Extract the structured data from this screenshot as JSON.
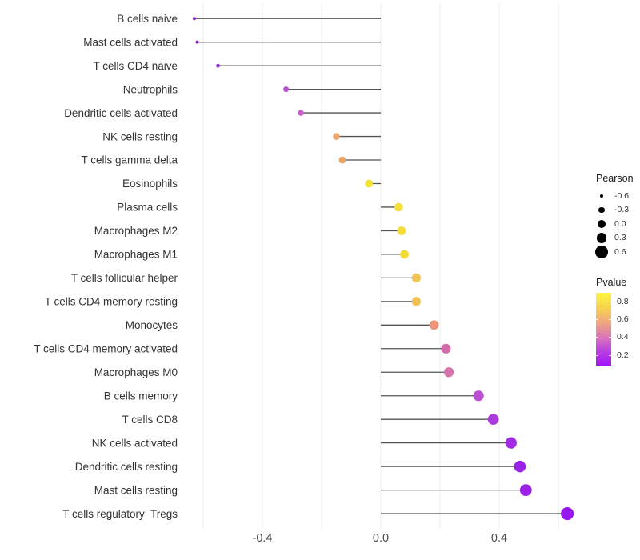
{
  "chart_data": {
    "type": "lollipop",
    "title": "",
    "xlabel": "",
    "ylabel": "",
    "xlim": [
      -0.72,
      0.72
    ],
    "grid": true,
    "gridline_values": [
      -0.6,
      -0.4,
      -0.2,
      0.0,
      0.2,
      0.4,
      0.6
    ],
    "x_ticks": [
      {
        "value": -0.4,
        "label": "-0.4"
      },
      {
        "value": 0.0,
        "label": "0.0"
      },
      {
        "value": 0.4,
        "label": "0.4"
      }
    ],
    "categories": [
      "B cells naive",
      "Mast cells activated",
      "T cells CD4 naive",
      "Neutrophils",
      "Dendritic cells activated",
      "NK cells resting",
      "T cells gamma delta",
      "Eosinophils",
      "Plasma cells",
      "Macrophages M2",
      "Macrophages M1",
      "T cells follicular helper",
      "T cells CD4 memory resting",
      "Monocytes",
      "T cells CD4 memory activated",
      "Macrophages M0",
      "B cells memory",
      "T cells CD8",
      "NK cells activated",
      "Dendritic cells resting",
      "Mast cells resting",
      "T cells regulatory  Tregs"
    ],
    "series": [
      {
        "name": "Pearson",
        "values": [
          -0.63,
          -0.62,
          -0.55,
          -0.32,
          -0.27,
          -0.15,
          -0.13,
          -0.04,
          0.06,
          0.07,
          0.08,
          0.12,
          0.12,
          0.18,
          0.22,
          0.23,
          0.33,
          0.38,
          0.44,
          0.47,
          0.49,
          0.63
        ]
      }
    ],
    "point_colors": [
      "#8A22D0",
      "#8A22D0",
      "#8B2BD6",
      "#B453CE",
      "#C75DC8",
      "#EBA96E",
      "#E9A366",
      "#F4E32C",
      "#F6DE3C",
      "#F5DC3A",
      "#F4DA38",
      "#F0C455",
      "#F0C253",
      "#EC9477",
      "#D26CA8",
      "#D673AC",
      "#BA4FD4",
      "#A93BDB",
      "#9F2BE2",
      "#9A22E6",
      "#9A20E8",
      "#9616EE"
    ],
    "legend_size": {
      "title": "Pearson",
      "entries": [
        {
          "value": -0.6,
          "label": "-0.6"
        },
        {
          "value": -0.3,
          "label": "-0.3"
        },
        {
          "value": 0.0,
          "label": "0.0"
        },
        {
          "value": 0.3,
          "label": "0.3"
        },
        {
          "value": 0.6,
          "label": "0.6"
        }
      ],
      "dot_color": "#000000"
    },
    "legend_color": {
      "title": "Pvalue",
      "tick_labels": [
        {
          "value": 0.8,
          "label": "0.8"
        },
        {
          "value": 0.6,
          "label": "0.6"
        },
        {
          "value": 0.4,
          "label": "0.4"
        },
        {
          "value": 0.2,
          "label": "0.2"
        }
      ],
      "gradient_top_to_bottom": [
        "#FCF63D",
        "#F8D44E",
        "#F0A87C",
        "#DC79B6",
        "#BB3FE3",
        "#A415F4"
      ]
    },
    "colors": {
      "stem": "#545454",
      "gridline": "#EBEBEB",
      "axis_tick_text": "#4D4D4D",
      "category_text": "#333333",
      "background": "#FFFFFF"
    }
  }
}
